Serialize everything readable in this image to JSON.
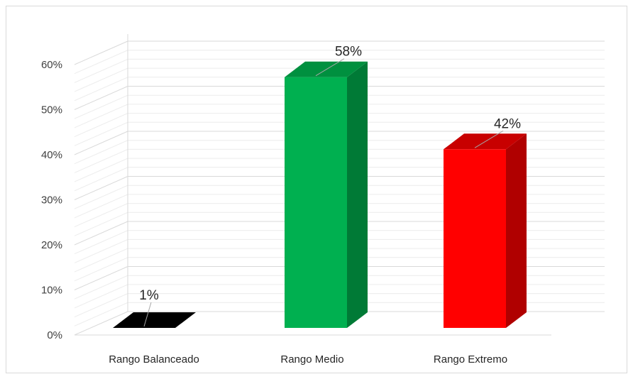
{
  "chart_data": {
    "type": "bar",
    "categories": [
      "Rango Balanceado",
      "Rango Medio",
      "Rango Extremo"
    ],
    "values": [
      1,
      58,
      42
    ],
    "data_labels": [
      "1%",
      "58%",
      "42%"
    ],
    "y_ticks": [
      "0%",
      "10%",
      "20%",
      "30%",
      "40%",
      "50%",
      "60%"
    ],
    "ylim": [
      0,
      60
    ],
    "grid": true,
    "style": "3d-column",
    "colors": {
      "Rango Balanceado": {
        "front": "#000000",
        "side": "#1a1a1a",
        "top": "#262626"
      },
      "Rango Medio": {
        "front": "#00b050",
        "side": "#007a36",
        "top": "#00903f"
      },
      "Rango Extremo": {
        "front": "#ff0000",
        "side": "#b00000",
        "top": "#c80000"
      }
    }
  }
}
